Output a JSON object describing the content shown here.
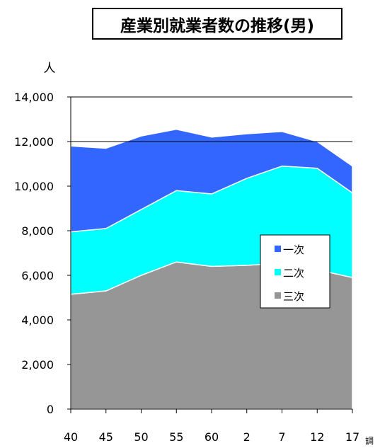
{
  "chart_data": {
    "type": "area",
    "stacked": true,
    "title": "産業別就業者数の推移(男)",
    "ylabel": "人",
    "xlabel": "",
    "corner_label": "調",
    "categories": [
      "40",
      "45",
      "50",
      "55",
      "60",
      "2",
      "7",
      "12",
      "17"
    ],
    "ylim": [
      0,
      14000
    ],
    "yticks": [
      "0",
      "2,000",
      "4,000",
      "6,000",
      "8,000",
      "10,000",
      "12,000",
      "14,000"
    ],
    "gridlines": [
      12000,
      14000
    ],
    "series": [
      {
        "name": "三次",
        "color": "#969696",
        "values": [
          5150,
          5300,
          6000,
          6600,
          6400,
          6450,
          6550,
          6250,
          5900
        ]
      },
      {
        "name": "二次",
        "color": "#00ffff",
        "values": [
          2800,
          2800,
          2950,
          3200,
          3250,
          3900,
          4350,
          4550,
          3800
        ]
      },
      {
        "name": "一次",
        "color": "#3366ff",
        "values": [
          3850,
          3600,
          3300,
          2750,
          2550,
          2000,
          1550,
          1200,
          1200
        ]
      }
    ],
    "legend": {
      "placement": "right-inside",
      "order": [
        "一次",
        "二次",
        "三次"
      ]
    }
  }
}
